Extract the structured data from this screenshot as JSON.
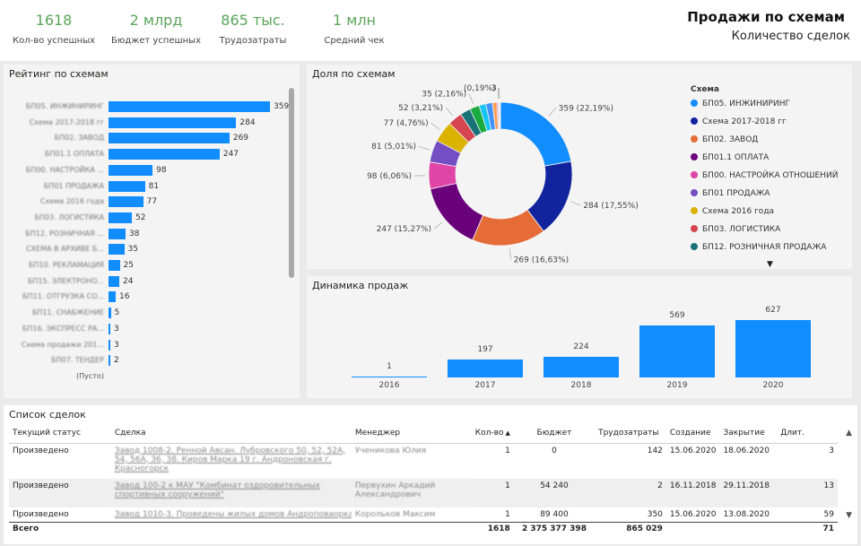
{
  "header": {
    "title": "Продажи по схемам",
    "subtitle": "Количество сделок",
    "kpis": [
      {
        "value": "1618",
        "label": "Кол-во успешных"
      },
      {
        "value": "2 млрд",
        "label": "Бюджет успешных"
      },
      {
        "value": "865 тыс.",
        "label": "Трудозатраты"
      },
      {
        "value": "1 млн",
        "label": "Средний чек"
      }
    ]
  },
  "rating": {
    "title": "Рейтинг по схемам",
    "rows": [
      {
        "label": "БП05. ИНЖИНИРИНГ",
        "value": 359
      },
      {
        "label": "Схема 2017-2018 гг",
        "value": 284
      },
      {
        "label": "БП02. ЗАВОД",
        "value": 269
      },
      {
        "label": "БП01.1 ОПЛАТА",
        "value": 247
      },
      {
        "label": "БП00. НАСТРОЙКА ...",
        "value": 98
      },
      {
        "label": "БП01 ПРОДАЖА",
        "value": 81
      },
      {
        "label": "Схема 2016 года",
        "value": 77
      },
      {
        "label": "БП03. ЛОГИСТИКА",
        "value": 52
      },
      {
        "label": "БП12. РОЗНИЧНАЯ ...",
        "value": 38
      },
      {
        "label": "СХЕМА В АРХИВЕ Б...",
        "value": 35
      },
      {
        "label": "БП10. РЕКЛАМАЦИЯ",
        "value": 25
      },
      {
        "label": "БП15. ЭЛЕКТРОНО...",
        "value": 24
      },
      {
        "label": "БП11. ОТГРУЗКА СО...",
        "value": 16
      },
      {
        "label": "БП11. СНАБЖЕНИЕ",
        "value": 5
      },
      {
        "label": "БП16. ЭКСПРЕСС РА...",
        "value": 3
      },
      {
        "label": "Схема продажи 201...",
        "value": 3
      },
      {
        "label": "БП07. ТЕНДЕР",
        "value": 2
      },
      {
        "label": "(Пусто)",
        "value": null
      }
    ]
  },
  "share": {
    "title": "Доля по схемам",
    "legend_title": "Схема",
    "legend_more_icon": "▼",
    "slices": [
      {
        "name": "БП05. ИНЖИНИРИНГ",
        "value": 359,
        "label": "359 (22,19%)",
        "color": "#118dff"
      },
      {
        "name": "Схема 2017-2018 гг",
        "value": 284,
        "label": "284 (17,55%)",
        "color": "#12239e"
      },
      {
        "name": "БП02. ЗАВОД",
        "value": 269,
        "label": "269 (16,63%)",
        "color": "#e66c37"
      },
      {
        "name": "БП01.1 ОПЛАТА",
        "value": 247,
        "label": "247 (15,27%)",
        "color": "#6b007b"
      },
      {
        "name": "БП00. НАСТРОЙКА ОТНОШЕНИЙ",
        "value": 98,
        "label": "98 (6,06%)",
        "color": "#e044a7"
      },
      {
        "name": "БП01 ПРОДАЖА",
        "value": 81,
        "label": "81 (5,01%)",
        "color": "#744ec2"
      },
      {
        "name": "Схема 2016 года",
        "value": 77,
        "label": "77 (4,76%)",
        "color": "#d9b300"
      },
      {
        "name": "БП03. ЛОГИСТИКА",
        "value": 52,
        "label": "52 (3,21%)",
        "color": "#d64550"
      },
      {
        "name": "БП12. РОЗНИЧНАЯ ПРОДАЖА",
        "value": 38,
        "label": "",
        "color": "#197278"
      },
      {
        "name": "",
        "value": 35,
        "label": "35 (2,16%)",
        "color": "#1aab40"
      },
      {
        "name": "",
        "value": 25,
        "label": "",
        "color": "#15c6f4"
      },
      {
        "name": "",
        "value": 24,
        "label": "",
        "color": "#4092ff"
      },
      {
        "name": "",
        "value": 16,
        "label": "",
        "color": "#ffa058"
      },
      {
        "name": "",
        "value": 5,
        "label": "",
        "color": "#be5dc9"
      },
      {
        "name": "",
        "value": 3,
        "label": "(0,19%)",
        "color": "#f472d0"
      },
      {
        "name": "",
        "value": 3,
        "label": "3",
        "color": "#c5e14f"
      },
      {
        "name": "",
        "value": 2,
        "label": "",
        "color": "#b3b3b3"
      }
    ]
  },
  "dynamics": {
    "title": "Динамика продаж",
    "years": [
      {
        "year": "2016",
        "value": 1
      },
      {
        "year": "2017",
        "value": 197
      },
      {
        "year": "2018",
        "value": 224
      },
      {
        "year": "2019",
        "value": 569
      },
      {
        "year": "2020",
        "value": 627
      }
    ]
  },
  "deals": {
    "title": "Список сделок",
    "columns": [
      "Текущий статус",
      "Сделка",
      "Менеджер",
      "Кол-во",
      "Бюджет",
      "Трудозатраты",
      "Создание",
      "Закрытие",
      "Длит."
    ],
    "sort_icon": "▲",
    "scroll_up_icon": "▲",
    "scroll_down_icon": "▼",
    "rows": [
      {
        "status": "Произведено",
        "deal": "Завод 1008-2. Ренной Авсан. Лубровского 50, 52, 52А, 54, 56А, 36, 38. Киров Марка 19 г. Андроновская г. Красногорск",
        "manager": "Ученикова Юлия",
        "qty": "1",
        "budget": "0",
        "labor": "142",
        "created": "15.06.2020",
        "closed": "18.06.2020",
        "duration": "3"
      },
      {
        "status": "Произведено",
        "deal": "Завод 100-2 к МАУ \"Комбинат оздоровительных спортивных сооружений\"",
        "manager": "Первухин Аркадий Александрович",
        "qty": "1",
        "budget": "54 240",
        "labor": "2",
        "created": "16.11.2018",
        "closed": "29.11.2018",
        "duration": "13"
      },
      {
        "status": "Произведено",
        "deal": "Завод 1010-3. Проведены жилых домов Андроповаорка г",
        "manager": "Корольков Максим",
        "qty": "1",
        "budget": "89 400",
        "labor": "350",
        "created": "15.06.2020",
        "closed": "13.08.2020",
        "duration": "59"
      }
    ],
    "total": {
      "label": "Всего",
      "qty": "1618",
      "budget": "2 375 377 398",
      "labor": "865 029",
      "duration": "71"
    }
  }
}
